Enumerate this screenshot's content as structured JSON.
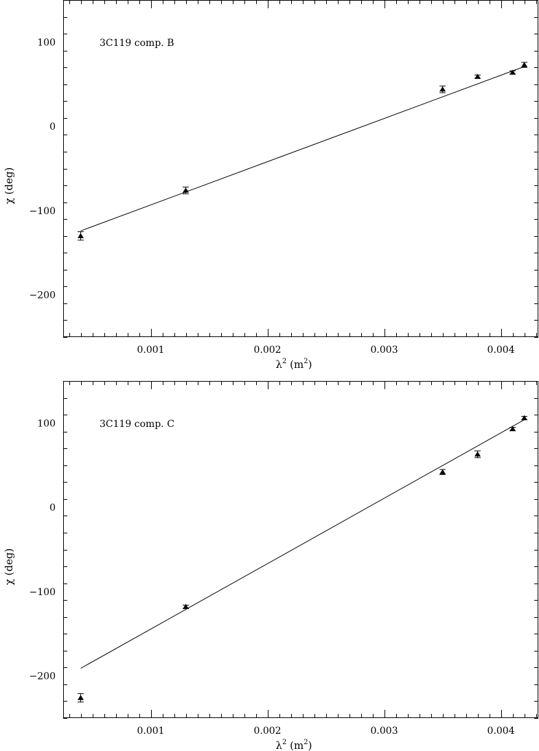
{
  "chart_data": [
    {
      "type": "scatter",
      "title": "3C119 comp. B",
      "xlabel": "λ",
      "xlabel_sup": "2",
      "xlabel_unit_open": " (m",
      "xlabel_unit_sup": "2",
      "xlabel_unit_close": ")",
      "ylabel": "χ (deg)",
      "xlim": [
        0.00025,
        0.00432
      ],
      "ylim": [
        -250,
        150
      ],
      "xticks": [
        0.001,
        0.002,
        0.003,
        0.004
      ],
      "xtick_labels": [
        "0.001",
        "0.002",
        "0.003",
        "0.004"
      ],
      "yticks": [
        -200,
        -100,
        0,
        100
      ],
      "ytick_labels": [
        "−200",
        "−100",
        "0",
        "100"
      ],
      "x_minor_step": 0.0001,
      "y_minor_step": 20,
      "grid": false,
      "series": [
        {
          "x": [
            0.0004,
            0.0013,
            0.0035,
            0.0038,
            0.0041,
            0.0042
          ],
          "y": [
            -130,
            -76,
            44,
            59,
            64,
            73
          ],
          "err": [
            5,
            4,
            4,
            2,
            2,
            3
          ],
          "marker": "triangle"
        }
      ],
      "fit_line": {
        "x": [
          0.0004,
          0.0042
        ],
        "y": [
          -124,
          71
        ]
      }
    },
    {
      "type": "scatter",
      "title": "3C119 comp. C",
      "xlabel": "λ",
      "xlabel_sup": "2",
      "xlabel_unit_open": " (m",
      "xlabel_unit_sup": "2",
      "xlabel_unit_close": ")",
      "ylabel": "χ (deg)",
      "xlim": [
        0.00025,
        0.00432
      ],
      "ylim": [
        -250,
        150
      ],
      "xticks": [
        0.001,
        0.002,
        0.003,
        0.004
      ],
      "xtick_labels": [
        "0.001",
        "0.002",
        "0.003",
        "0.004"
      ],
      "yticks": [
        -200,
        -100,
        0,
        100
      ],
      "ytick_labels": [
        "−200",
        "−100",
        "0",
        "100"
      ],
      "x_minor_step": 0.0001,
      "y_minor_step": 20,
      "grid": false,
      "series": [
        {
          "x": [
            0.0004,
            0.0013,
            0.0035,
            0.0038,
            0.0041,
            0.0042
          ],
          "y": [
            -226,
            -118,
            42,
            63,
            93,
            106
          ],
          "err": [
            5,
            2,
            3,
            4,
            2,
            2
          ],
          "marker": "triangle"
        }
      ],
      "fit_line": {
        "x": [
          0.0004,
          0.0042
        ],
        "y": [
          -191,
          104
        ]
      }
    }
  ]
}
